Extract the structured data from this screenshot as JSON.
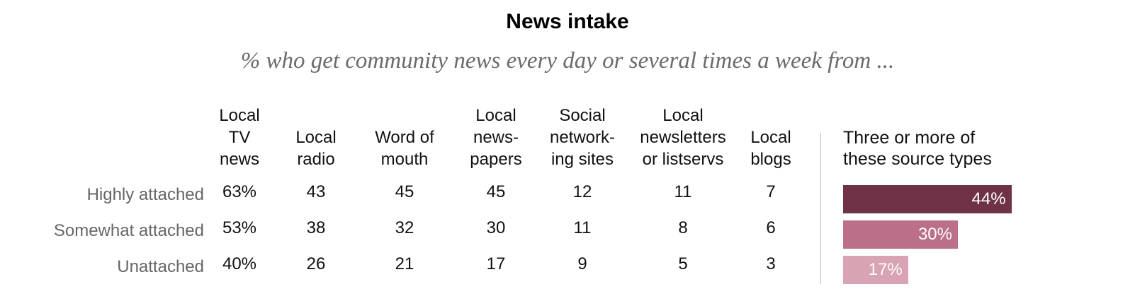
{
  "chart_data": {
    "type": "table",
    "title": "News intake",
    "subtitle": "% who get community news every day or several times a week from ...",
    "columns": [
      "Local\nTV\nnews",
      "Local\nradio",
      "Word of\nmouth",
      "Local\nnews-\npapers",
      "Social\nnetwork-\ning sites",
      "Local\nnewsletters\nor listservs",
      "Local\nblogs"
    ],
    "rows": [
      {
        "label": "Highly attached",
        "values": [
          "63%",
          "43",
          "45",
          "45",
          "12",
          "11",
          "7"
        ]
      },
      {
        "label": "Somewhat attached",
        "values": [
          "53%",
          "38",
          "32",
          "30",
          "11",
          "8",
          "6"
        ]
      },
      {
        "label": "Unattached",
        "values": [
          "40%",
          "26",
          "21",
          "17",
          "9",
          "5",
          "3"
        ]
      }
    ],
    "bar_column": {
      "header": "Three or more of\nthese source types",
      "values": [
        44,
        30,
        17
      ],
      "labels": [
        "44%",
        "30%",
        "17%"
      ],
      "colors": [
        "#6e3146",
        "#bb6f88",
        "#d8a3b3"
      ]
    }
  }
}
